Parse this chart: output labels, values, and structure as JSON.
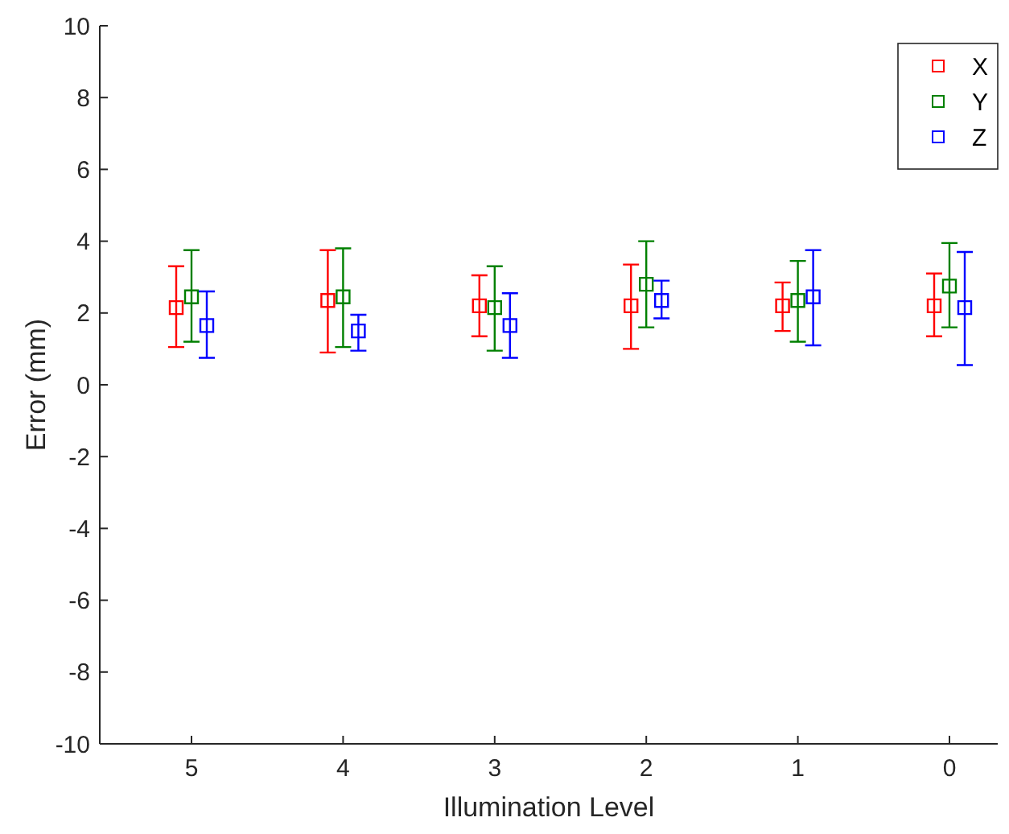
{
  "chart_data": {
    "type": "scatter",
    "xlabel": "Illumination Level",
    "ylabel": "Error (mm)",
    "categories": [
      "5",
      "4",
      "3",
      "2",
      "1",
      "0"
    ],
    "ylim": [
      -10,
      10
    ],
    "yticks": [
      -10,
      -8,
      -6,
      -4,
      -2,
      0,
      2,
      4,
      6,
      8,
      10
    ],
    "marker": "square",
    "grid": false,
    "legend": "top right",
    "series": [
      {
        "name": "X",
        "color": "#ff0000",
        "values": [
          2.15,
          2.35,
          2.2,
          2.2,
          2.2,
          2.2
        ],
        "errors": [
          [
            1.05,
            3.3
          ],
          [
            0.9,
            3.75
          ],
          [
            1.35,
            3.05
          ],
          [
            1.0,
            3.35
          ],
          [
            1.5,
            2.85
          ],
          [
            1.35,
            3.1
          ]
        ]
      },
      {
        "name": "Y",
        "color": "#008000",
        "values": [
          2.45,
          2.45,
          2.15,
          2.8,
          2.35,
          2.75
        ],
        "errors": [
          [
            1.2,
            3.75
          ],
          [
            1.05,
            3.8
          ],
          [
            0.95,
            3.3
          ],
          [
            1.6,
            4.0
          ],
          [
            1.2,
            3.45
          ],
          [
            1.6,
            3.95
          ]
        ]
      },
      {
        "name": "Z",
        "color": "#0000ff",
        "values": [
          1.65,
          1.5,
          1.65,
          2.35,
          2.45,
          2.15
        ],
        "errors": [
          [
            0.75,
            2.6
          ],
          [
            0.95,
            1.95
          ],
          [
            0.75,
            2.55
          ],
          [
            1.85,
            2.9
          ],
          [
            1.1,
            3.75
          ],
          [
            0.55,
            3.7
          ]
        ]
      }
    ]
  }
}
